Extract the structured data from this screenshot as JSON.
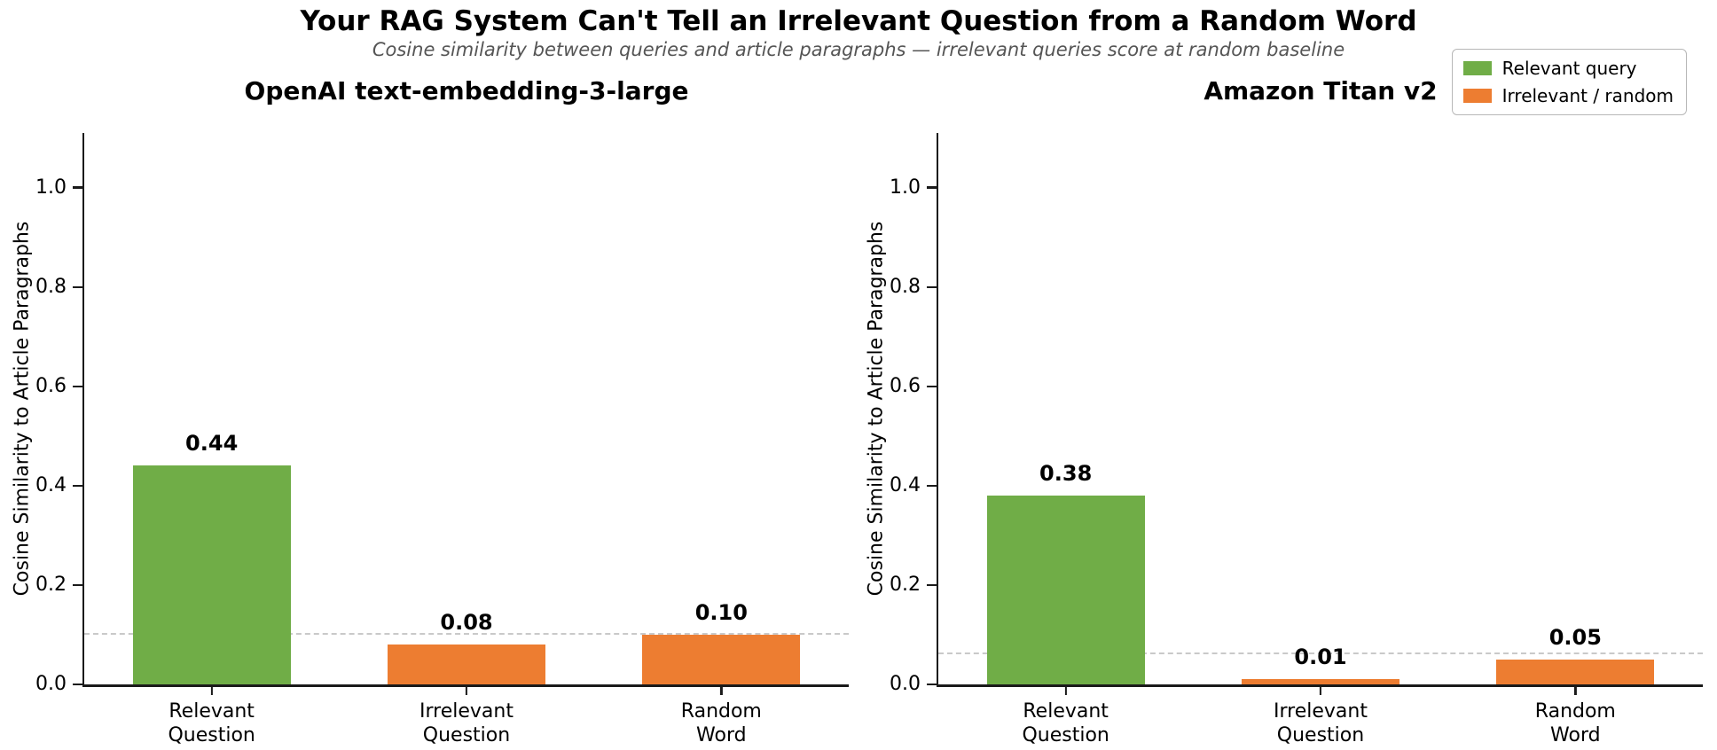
{
  "figure": {
    "title": "Your RAG System Can't Tell an Irrelevant Question from a Random Word",
    "subtitle": "Cosine similarity between queries and article paragraphs — irrelevant queries score at random baseline"
  },
  "legend": {
    "items": [
      {
        "label": "Relevant query",
        "color": "#70ad47"
      },
      {
        "label": "Irrelevant / random",
        "color": "#ed7d31"
      }
    ],
    "position": "figure-top-right"
  },
  "colors": {
    "relevant_bar": "#70ad47",
    "irrelevant_bar": "#ed7d31",
    "baseline_dash": "#c9c9c9",
    "axis": "#1a1a1a",
    "subtitle_text": "#555555"
  },
  "chart_data": [
    {
      "type": "bar",
      "title": "OpenAI text-embedding-3-large",
      "ylabel": "Cosine Similarity to Article Paragraphs",
      "categories": [
        "Relevant\nQuestion",
        "Irrelevant\nQuestion",
        "Random\nWord"
      ],
      "values": [
        0.44,
        0.08,
        0.1
      ],
      "value_labels": [
        "0.44",
        "0.08",
        "0.10"
      ],
      "bar_colors": [
        "#70ad47",
        "#ed7d31",
        "#ed7d31"
      ],
      "yticks": [
        0.0,
        0.2,
        0.4,
        0.6,
        0.8,
        1.0
      ],
      "ylim": [
        0,
        1.11
      ],
      "baseline": 0.1,
      "grid": false
    },
    {
      "type": "bar",
      "title": "Amazon Titan v2",
      "ylabel": "Cosine Similarity to Article Paragraphs",
      "categories": [
        "Relevant\nQuestion",
        "Irrelevant\nQuestion",
        "Random\nWord"
      ],
      "values": [
        0.38,
        0.01,
        0.05
      ],
      "value_labels": [
        "0.38",
        "0.01",
        "0.05"
      ],
      "bar_colors": [
        "#70ad47",
        "#ed7d31",
        "#ed7d31"
      ],
      "yticks": [
        0.0,
        0.2,
        0.4,
        0.6,
        0.8,
        1.0
      ],
      "ylim": [
        0,
        1.11
      ],
      "baseline": 0.06,
      "grid": false
    }
  ]
}
